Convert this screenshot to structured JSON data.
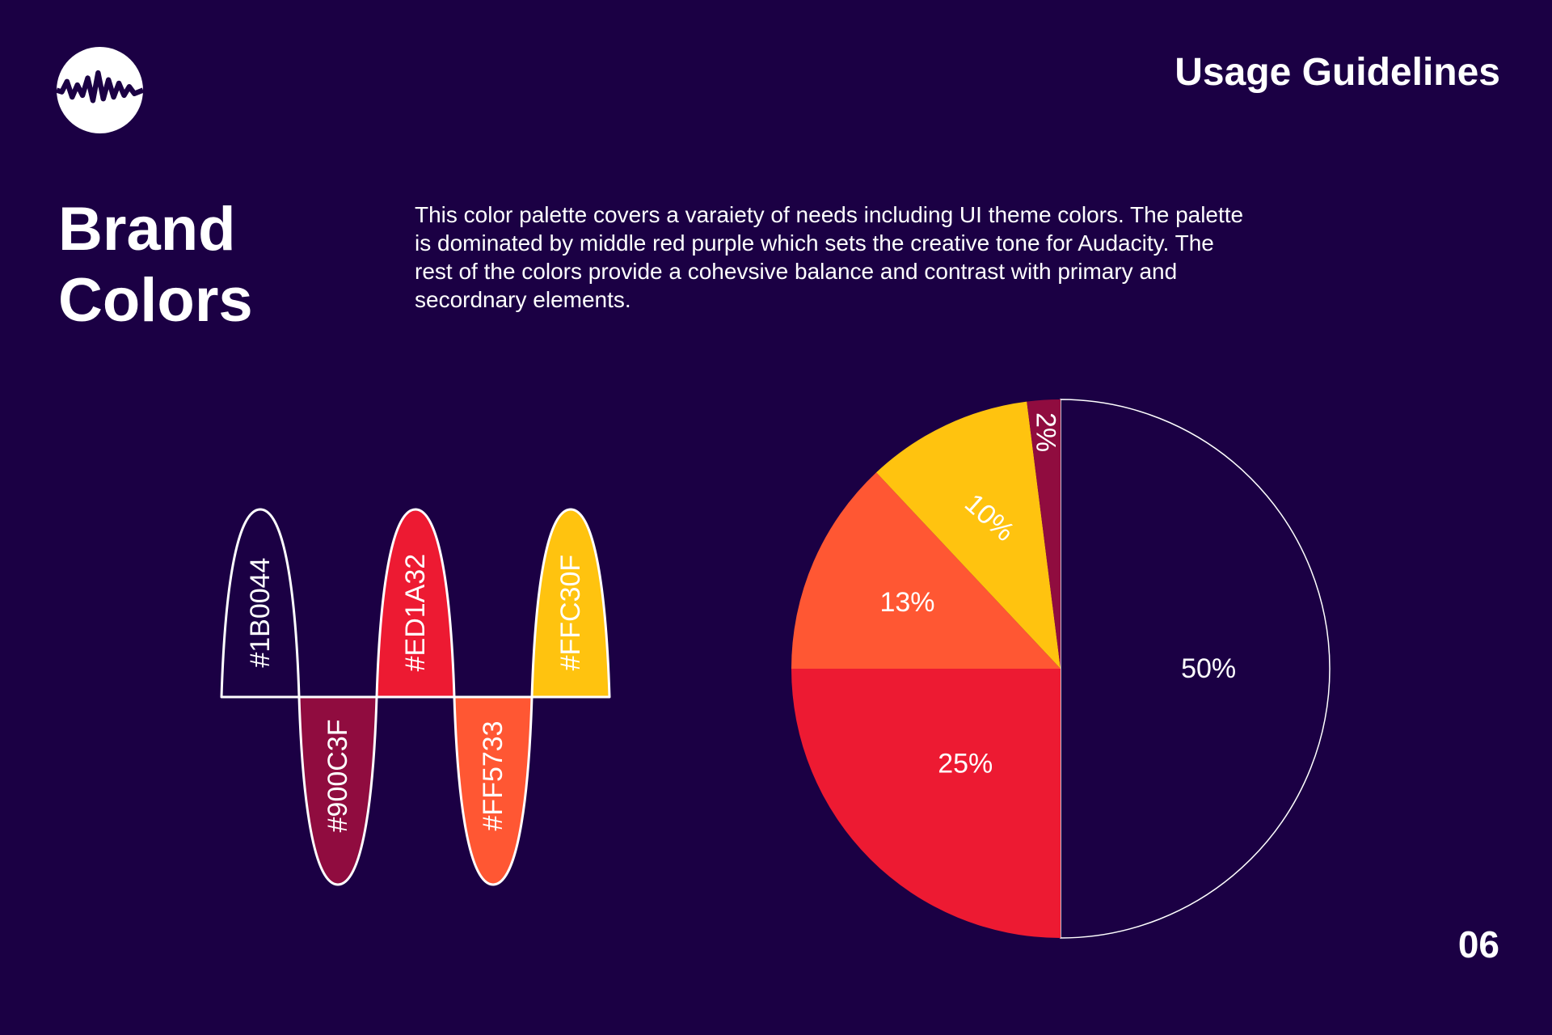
{
  "header": {
    "title": "Usage Guidelines"
  },
  "page": {
    "title_line1": "Brand",
    "title_line2": "Colors",
    "description": "This color palette covers  a varaiety of needs including UI theme colors. The palette is dominated by middle red purple which sets the creative tone for Audacity. The rest of the colors provide a cohevsive balance and contrast with primary and secordnary elements.",
    "number": "06"
  },
  "logo": {
    "icon": "waveform-logo-icon"
  },
  "swatches": [
    {
      "hex": "#1B0044",
      "color": "#1b0044",
      "direction": "up"
    },
    {
      "hex": "#900C3F",
      "color": "#900c3f",
      "direction": "down"
    },
    {
      "hex": "#ED1A32",
      "color": "#ed1a32",
      "direction": "up"
    },
    {
      "hex": "#FF5733",
      "color": "#ff5733",
      "direction": "down"
    },
    {
      "hex": "#FFC30F",
      "color": "#ffc30f",
      "direction": "up"
    }
  ],
  "chart_data": {
    "type": "pie",
    "slices": [
      {
        "label": "50%",
        "value": 50,
        "color": "#1b0044"
      },
      {
        "label": "25%",
        "value": 25,
        "color": "#ed1a32"
      },
      {
        "label": "13%",
        "value": 13,
        "color": "#ff5733"
      },
      {
        "label": "10%",
        "value": 10,
        "color": "#ffc30f"
      },
      {
        "label": "2%",
        "value": 2,
        "color": "#900c3f"
      }
    ]
  }
}
